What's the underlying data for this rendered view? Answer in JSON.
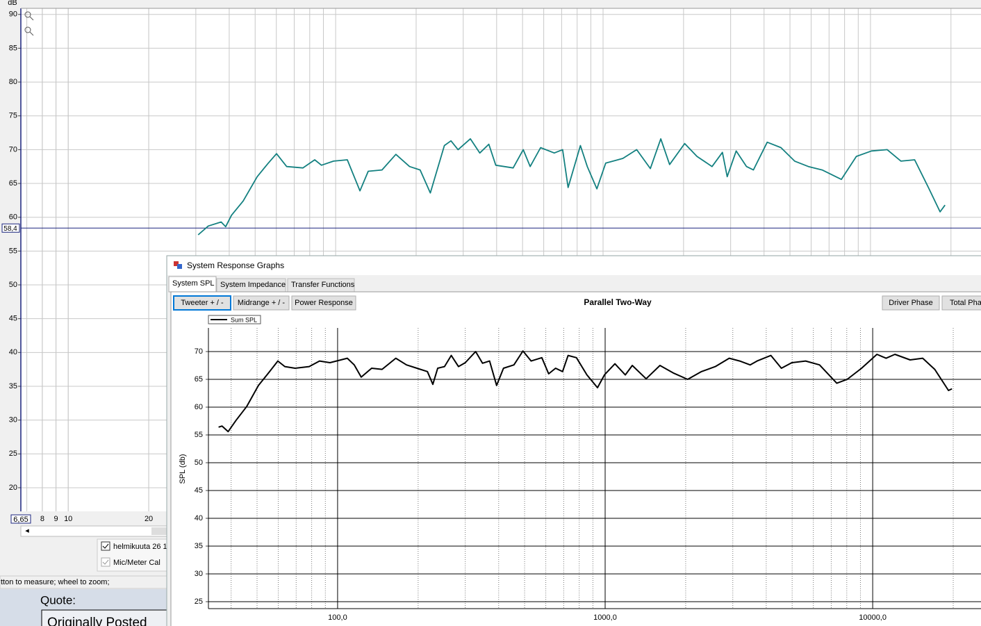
{
  "chart_data": [
    {
      "type": "line",
      "y_axis_label": "dB",
      "log_x": true,
      "grid": true,
      "xlim": [
        6.65,
        25900
      ],
      "ylim": [
        16.5,
        90.9
      ],
      "xticks": [
        8,
        9,
        10,
        20
      ],
      "xgrid": [
        7,
        8,
        9,
        10,
        20,
        30,
        40,
        50,
        60,
        70,
        80,
        90,
        100,
        200,
        300,
        400,
        500,
        600,
        700,
        800,
        900,
        1000,
        2000,
        3000,
        4000,
        5000,
        6000,
        7000,
        8000,
        9000,
        10000,
        20000
      ],
      "yticks": [
        20,
        25,
        30,
        35,
        40,
        45,
        50,
        55,
        60,
        65,
        70,
        75,
        80,
        85,
        90
      ],
      "cursor_x": {
        "value": 6.65,
        "label": "6,65"
      },
      "cursor_y": {
        "value": 58.4,
        "label": "58,4"
      },
      "series": [
        {
          "name": "helmikuuta 26 1",
          "color": "#138080",
          "x": [
            30.6,
            33.4,
            37.3,
            38.8,
            40.8,
            45.1,
            50.9,
            55.7,
            60.1,
            65.6,
            75.4,
            83.5,
            88.5,
            98.2,
            110.6,
            123.3,
            132.4,
            149,
            168,
            189,
            207,
            226,
            255,
            270,
            287,
            319,
            346,
            374,
            397,
            461,
            503,
            534,
            584,
            657,
            706,
            740,
            823,
            873,
            948,
            1023,
            1186,
            1336,
            1503,
            1644,
            1774,
            2019,
            2245,
            2556,
            2795,
            2912,
            3146,
            3440,
            3650,
            4110,
            4626,
            5206,
            5859,
            6593,
            7780,
            8856,
            10080,
            11550,
            13000,
            14630,
            16470,
            18210,
            19000
          ],
          "values": [
            57.4,
            58.7,
            59.3,
            58.6,
            60.3,
            62.4,
            66.0,
            67.9,
            69.4,
            67.5,
            67.3,
            68.5,
            67.7,
            68.3,
            68.5,
            63.9,
            66.8,
            67.0,
            69.3,
            67.5,
            67.0,
            63.6,
            70.6,
            71.3,
            70.0,
            71.6,
            69.5,
            70.8,
            67.7,
            67.3,
            70.0,
            67.5,
            70.3,
            69.5,
            70.0,
            64.4,
            70.6,
            67.5,
            64.2,
            68.0,
            68.7,
            70.0,
            67.2,
            71.6,
            67.8,
            70.9,
            69.0,
            67.5,
            69.6,
            66.0,
            69.8,
            67.5,
            67.0,
            71.1,
            70.3,
            68.3,
            67.5,
            67.0,
            65.6,
            69.0,
            69.8,
            70.0,
            68.3,
            68.5,
            64.4,
            60.8,
            61.8
          ]
        }
      ]
    },
    {
      "type": "line",
      "title": "Parallel Two-Way",
      "y_axis_label": "SPL (db)",
      "log_x": true,
      "grid": true,
      "xlim": [
        32.9,
        25400
      ],
      "ylim": [
        23.75,
        74.25
      ],
      "xticks": [
        {
          "value": 100,
          "label": "100,0"
        },
        {
          "value": 1000,
          "label": "1000,0"
        },
        {
          "value": 10000,
          "label": "10000,0"
        }
      ],
      "xgrid": [
        40,
        50,
        60,
        70,
        80,
        90,
        200,
        300,
        400,
        500,
        600,
        700,
        800,
        900,
        2000,
        3000,
        4000,
        5000,
        6000,
        7000,
        8000,
        9000,
        20000
      ],
      "yticks": [
        25,
        30,
        35,
        40,
        45,
        50,
        55,
        60,
        65,
        70
      ],
      "series": [
        {
          "name": "Sum SPL",
          "color": "#000000",
          "x": [
            35.9,
            37.0,
            39.0,
            41.7,
            45.7,
            50.6,
            55.7,
            59.8,
            63.5,
            69.4,
            78.3,
            85.6,
            93.6,
            108.7,
            115.4,
            122.5,
            134,
            146.6,
            165,
            180.9,
            197.9,
            216.6,
            227,
            236.7,
            251,
            266,
            283,
            300,
            328,
            348,
            370,
            393,
            417,
            456,
            493,
            529,
            580,
            615,
            653,
            693,
            727,
            781,
            855,
            936,
            994,
            1088,
            1189,
            1263,
            1423,
            1603,
            1806,
            2034,
            2292,
            2581,
            2909,
            3183,
            3483,
            3698,
            4165,
            4557,
            4985,
            5617,
            6329,
            7342,
            8031,
            9089,
            10370,
            11220,
            12110,
            13800,
            15380,
            17060,
            19200,
            19780
          ],
          "values": [
            56.4,
            56.6,
            55.6,
            57.6,
            60.1,
            63.9,
            66.4,
            68.3,
            67.3,
            67.0,
            67.3,
            68.3,
            68.0,
            68.8,
            67.6,
            65.4,
            67.0,
            66.8,
            68.8,
            67.6,
            67.0,
            66.4,
            64.1,
            67.0,
            67.3,
            69.3,
            67.3,
            68.0,
            70.0,
            67.9,
            68.3,
            63.9,
            67.0,
            67.6,
            70.1,
            68.3,
            68.9,
            66.0,
            67.0,
            66.4,
            69.3,
            68.9,
            65.8,
            63.5,
            65.8,
            67.8,
            65.8,
            67.5,
            65.1,
            67.5,
            66.1,
            65.0,
            66.4,
            67.3,
            68.8,
            68.3,
            67.6,
            68.3,
            69.3,
            67.0,
            68.0,
            68.3,
            67.6,
            64.3,
            65.0,
            67.0,
            69.5,
            68.8,
            69.5,
            68.5,
            68.8,
            66.8,
            63.0,
            63.3
          ]
        }
      ]
    }
  ],
  "rew": {
    "legend_extra": "Mic/Meter Cal",
    "status": "tton to measure; wheel to zoom;"
  },
  "forum": {
    "quote": "Quote:",
    "posted": "Originally Posted"
  },
  "window": {
    "title": "System Response Graphs",
    "tabs": [
      "System SPL",
      "System Impedance",
      "Transfer Functions"
    ],
    "buttons": [
      "Tweeter + / -",
      "Midrange + / -",
      "Power Response"
    ],
    "right_buttons": [
      "Driver Phase",
      "Total Pha"
    ]
  }
}
